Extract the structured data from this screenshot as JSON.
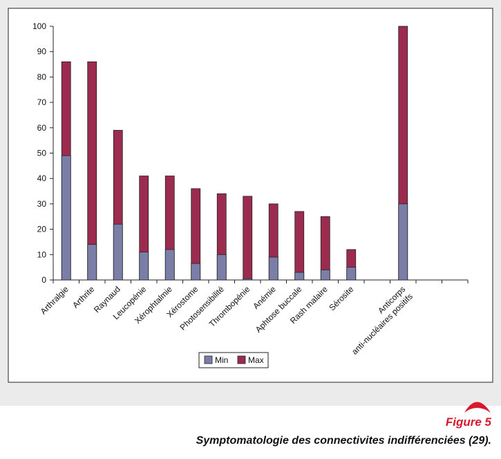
{
  "chart_data": {
    "type": "bar",
    "categories": [
      "Arthralgie",
      "Arthrite",
      "Raynaud",
      "Leucopénie",
      "Xérophtalmie",
      "Xérostome",
      "Photosensibilité",
      "Thrombopénie",
      "Anémie",
      "Aphtose buccale",
      "Rash malaire",
      "Sérosite",
      null,
      "Anticorps\nanti-nucléaires positifs",
      null,
      null
    ],
    "series": [
      {
        "name": "Min",
        "color": "#7b7fa8",
        "values": [
          49,
          14,
          22,
          11,
          12,
          6.5,
          10,
          0.5,
          9,
          3,
          4,
          5,
          null,
          30,
          null,
          null
        ]
      },
      {
        "name": "Max",
        "color": "#9b2c50",
        "values": [
          86,
          86,
          59,
          41,
          41,
          36,
          34,
          33,
          30,
          27,
          25,
          12,
          null,
          100,
          null,
          null
        ]
      }
    ],
    "ylim": [
      0,
      100
    ],
    "yticks": [
      0,
      10,
      20,
      30,
      40,
      50,
      60,
      70,
      80,
      90,
      100
    ],
    "figure_label": "Figure 5",
    "caption": "Symptomatologie des connectivites indifférenciées (29)."
  }
}
